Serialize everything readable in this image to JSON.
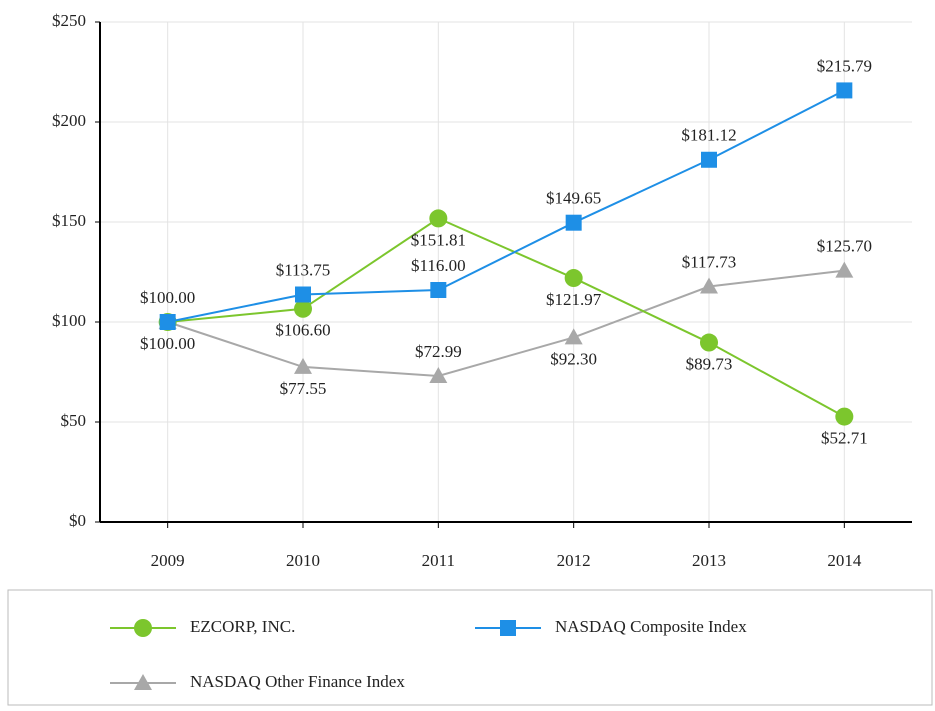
{
  "chart_data": {
    "type": "line",
    "categories": [
      "2009",
      "2010",
      "2011",
      "2012",
      "2013",
      "2014"
    ],
    "series": [
      {
        "name": "EZCORP, INC.",
        "color": "#7cc62d",
        "marker": "circle",
        "values": [
          100.0,
          106.6,
          151.81,
          121.97,
          89.73,
          52.71
        ],
        "value_labels": [
          "$100.00",
          "$106.60",
          "$151.81",
          "$121.97",
          "$89.73",
          "$52.71"
        ]
      },
      {
        "name": "NASDAQ Composite Index",
        "color": "#1e8fe6",
        "marker": "square",
        "values": [
          100.0,
          113.75,
          116.0,
          149.65,
          181.12,
          215.79
        ],
        "value_labels": [
          "$100.00",
          "$113.75",
          "$116.00",
          "$149.65",
          "$181.12",
          "$215.79"
        ]
      },
      {
        "name": "NASDAQ Other Finance Index",
        "color": "#a8a8a8",
        "marker": "triangle",
        "values": [
          100.0,
          77.55,
          72.99,
          92.3,
          117.73,
          125.7
        ],
        "value_labels": [
          null,
          "$77.55",
          "$72.99",
          "$92.30",
          "$117.73",
          "$125.70"
        ]
      }
    ],
    "ylim": [
      0,
      250
    ],
    "yticks": [
      {
        "value": 0,
        "label": "$0"
      },
      {
        "value": 50,
        "label": "$50"
      },
      {
        "value": 100,
        "label": "$100"
      },
      {
        "value": 150,
        "label": "$150"
      },
      {
        "value": 200,
        "label": "$200"
      },
      {
        "value": 250,
        "label": "$250"
      }
    ],
    "grid": true
  }
}
